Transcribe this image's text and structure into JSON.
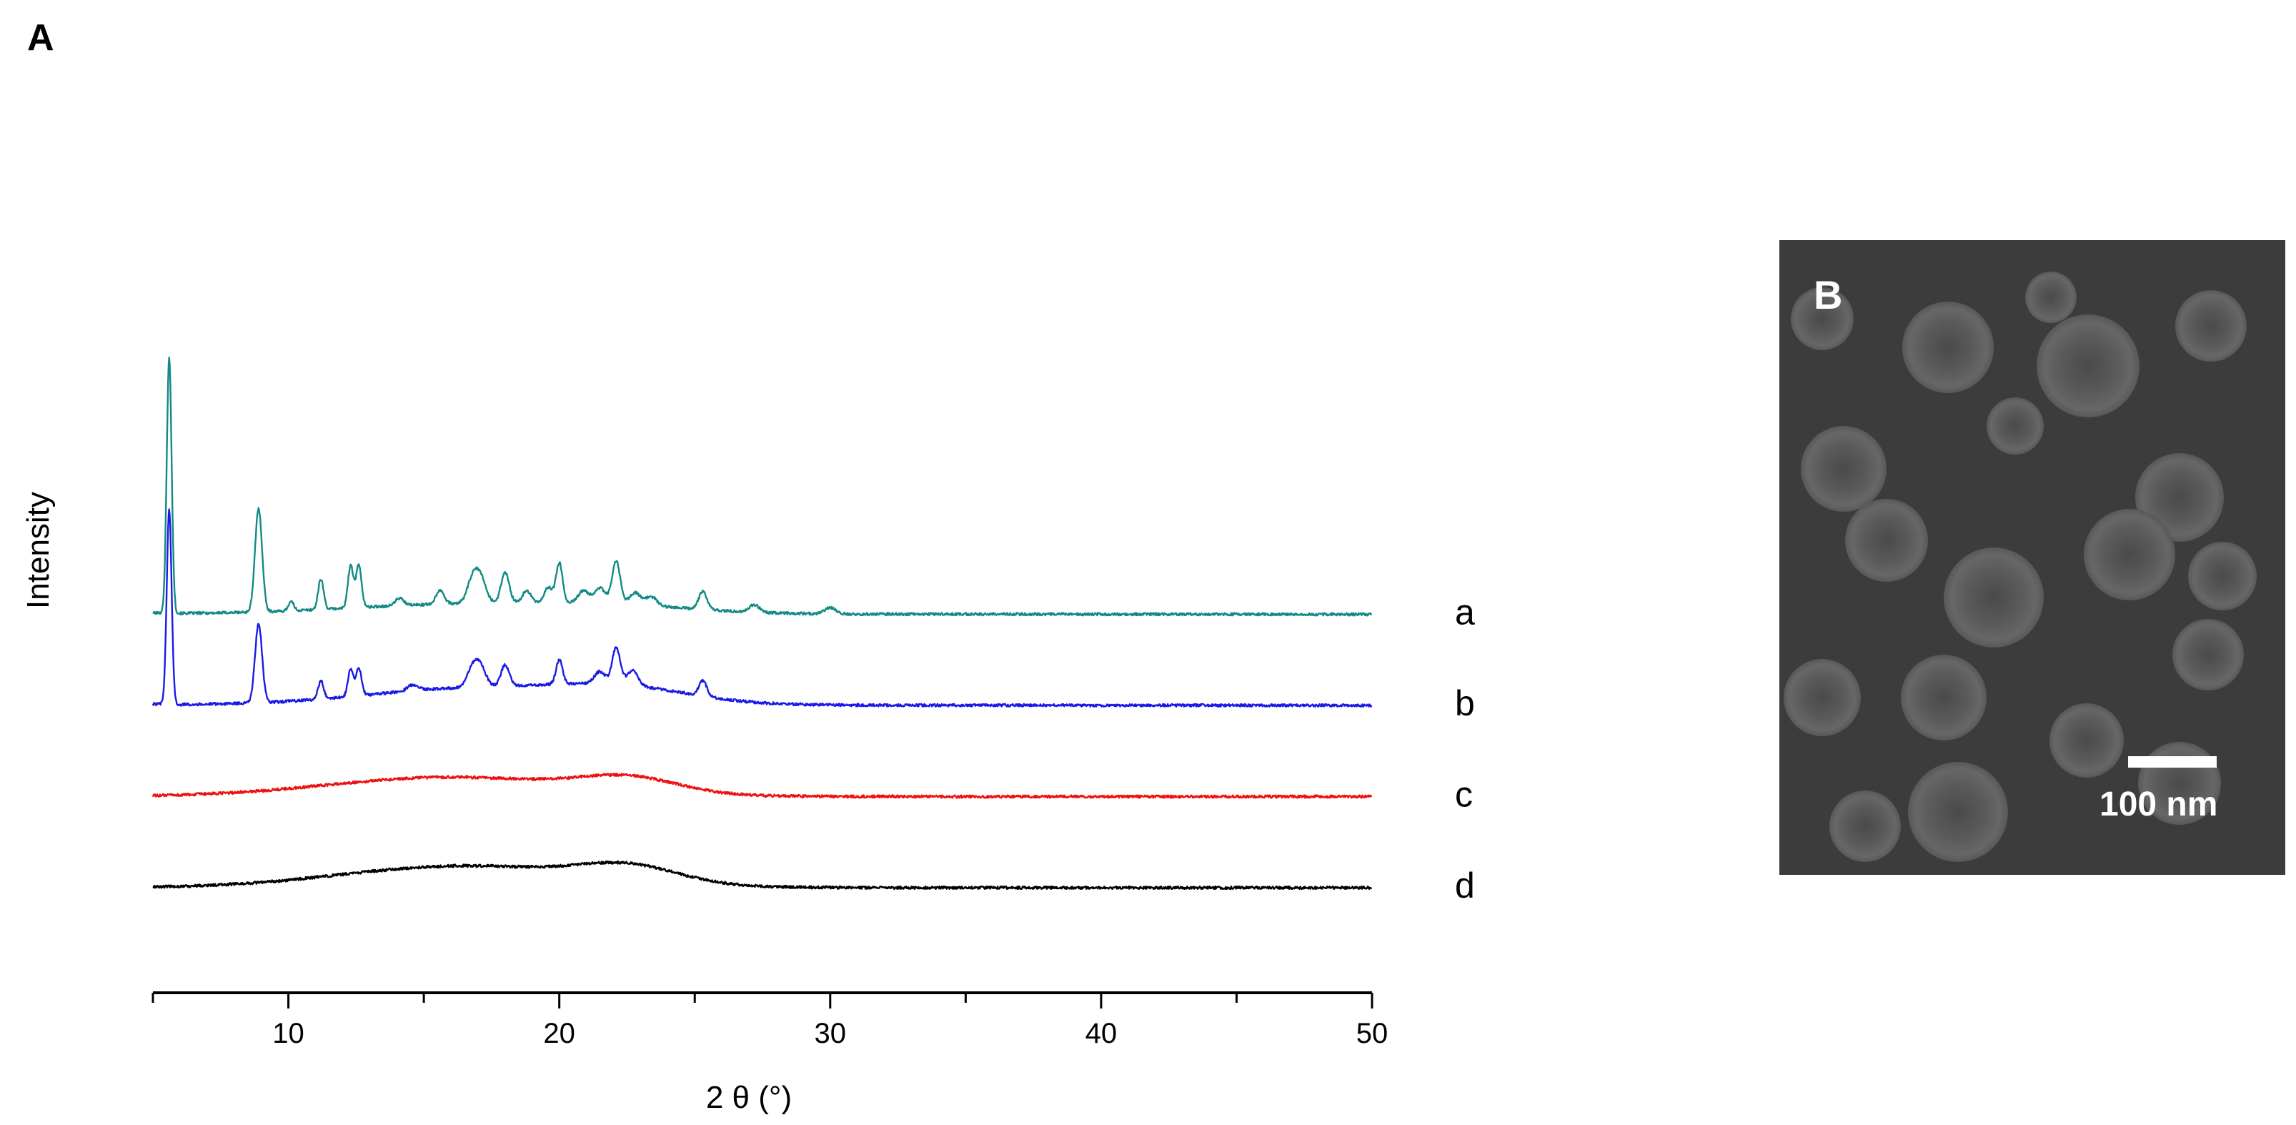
{
  "panel_a": {
    "letter": "A"
  },
  "panel_b": {
    "letter": "B",
    "scale_bar_label": "100 nm"
  },
  "chart_data": {
    "type": "line",
    "title": "",
    "xlabel": "2 θ  (°)",
    "ylabel": "Intensity",
    "xlim": [
      5,
      50
    ],
    "xticks_major": [
      10,
      20,
      30,
      40,
      50
    ],
    "xticks_minor_step": 5,
    "y_axis_shown": false,
    "grid": false,
    "legend": "curve letters at right end of each trace",
    "series": [
      {
        "name": "a",
        "color": "#138a84",
        "offset": 3,
        "noise": 0.22,
        "baseline": [
          [
            5,
            0.2
          ],
          [
            6,
            0.1
          ],
          [
            50,
            0.0
          ]
        ],
        "peaks": [
          [
            5.6,
            42,
            0.09
          ],
          [
            8.9,
            17,
            0.13
          ],
          [
            10.1,
            1.5,
            0.1
          ],
          [
            11.2,
            5,
            0.1
          ],
          [
            12.3,
            7,
            0.1
          ],
          [
            12.6,
            7,
            0.1
          ],
          [
            14.1,
            1.2,
            0.15
          ],
          [
            15.6,
            2.3,
            0.15
          ],
          [
            16.8,
            3.8,
            0.2
          ],
          [
            17.1,
            3.8,
            0.2
          ],
          [
            18.0,
            5,
            0.15
          ],
          [
            18.8,
            2,
            0.15
          ],
          [
            19.6,
            2.5,
            0.15
          ],
          [
            20.0,
            6.5,
            0.12
          ],
          [
            20.9,
            2,
            0.2
          ],
          [
            21.5,
            2.5,
            0.2
          ],
          [
            22.1,
            7,
            0.15
          ],
          [
            22.8,
            2,
            0.2
          ],
          [
            23.4,
            1.5,
            0.2
          ],
          [
            25.3,
            3,
            0.15
          ],
          [
            27.2,
            1.2,
            0.2
          ],
          [
            30.0,
            1.0,
            0.2
          ]
        ],
        "humps": [
          [
            16,
            1.5,
            4
          ],
          [
            22,
            1.2,
            3
          ]
        ]
      },
      {
        "name": "b",
        "color": "#1a1ae6",
        "offset": 2,
        "noise": 0.22,
        "baseline": [
          [
            5,
            0.2
          ],
          [
            6,
            0.1
          ],
          [
            50,
            0.0
          ]
        ],
        "peaks": [
          [
            5.6,
            32,
            0.09
          ],
          [
            8.9,
            13,
            0.13
          ],
          [
            11.2,
            3,
            0.1
          ],
          [
            12.3,
            4.5,
            0.1
          ],
          [
            12.6,
            4.5,
            0.1
          ],
          [
            14.6,
            1,
            0.2
          ],
          [
            16.8,
            3,
            0.2
          ],
          [
            17.1,
            3,
            0.2
          ],
          [
            18.0,
            3.5,
            0.15
          ],
          [
            20.0,
            4,
            0.12
          ],
          [
            21.5,
            2,
            0.2
          ],
          [
            22.1,
            6,
            0.15
          ],
          [
            22.7,
            2.5,
            0.2
          ],
          [
            25.3,
            2.5,
            0.15
          ]
        ],
        "humps": [
          [
            17,
            2.8,
            4
          ],
          [
            22.5,
            2.2,
            2.5
          ]
        ]
      },
      {
        "name": "c",
        "color": "#ee1111",
        "offset": 1,
        "noise": 0.22,
        "baseline": [
          [
            5,
            0.0
          ],
          [
            50,
            0.0
          ]
        ],
        "peaks": [],
        "humps": [
          [
            16,
            3.2,
            4.5
          ],
          [
            22.6,
            2.4,
            1.8
          ]
        ]
      },
      {
        "name": "d",
        "color": "#000000",
        "offset": 0,
        "noise": 0.22,
        "baseline": [
          [
            5,
            0.0
          ],
          [
            50,
            0.0
          ]
        ],
        "peaks": [],
        "humps": [
          [
            16.5,
            3.6,
            4.5
          ],
          [
            22.6,
            2.6,
            1.8
          ]
        ]
      }
    ]
  }
}
